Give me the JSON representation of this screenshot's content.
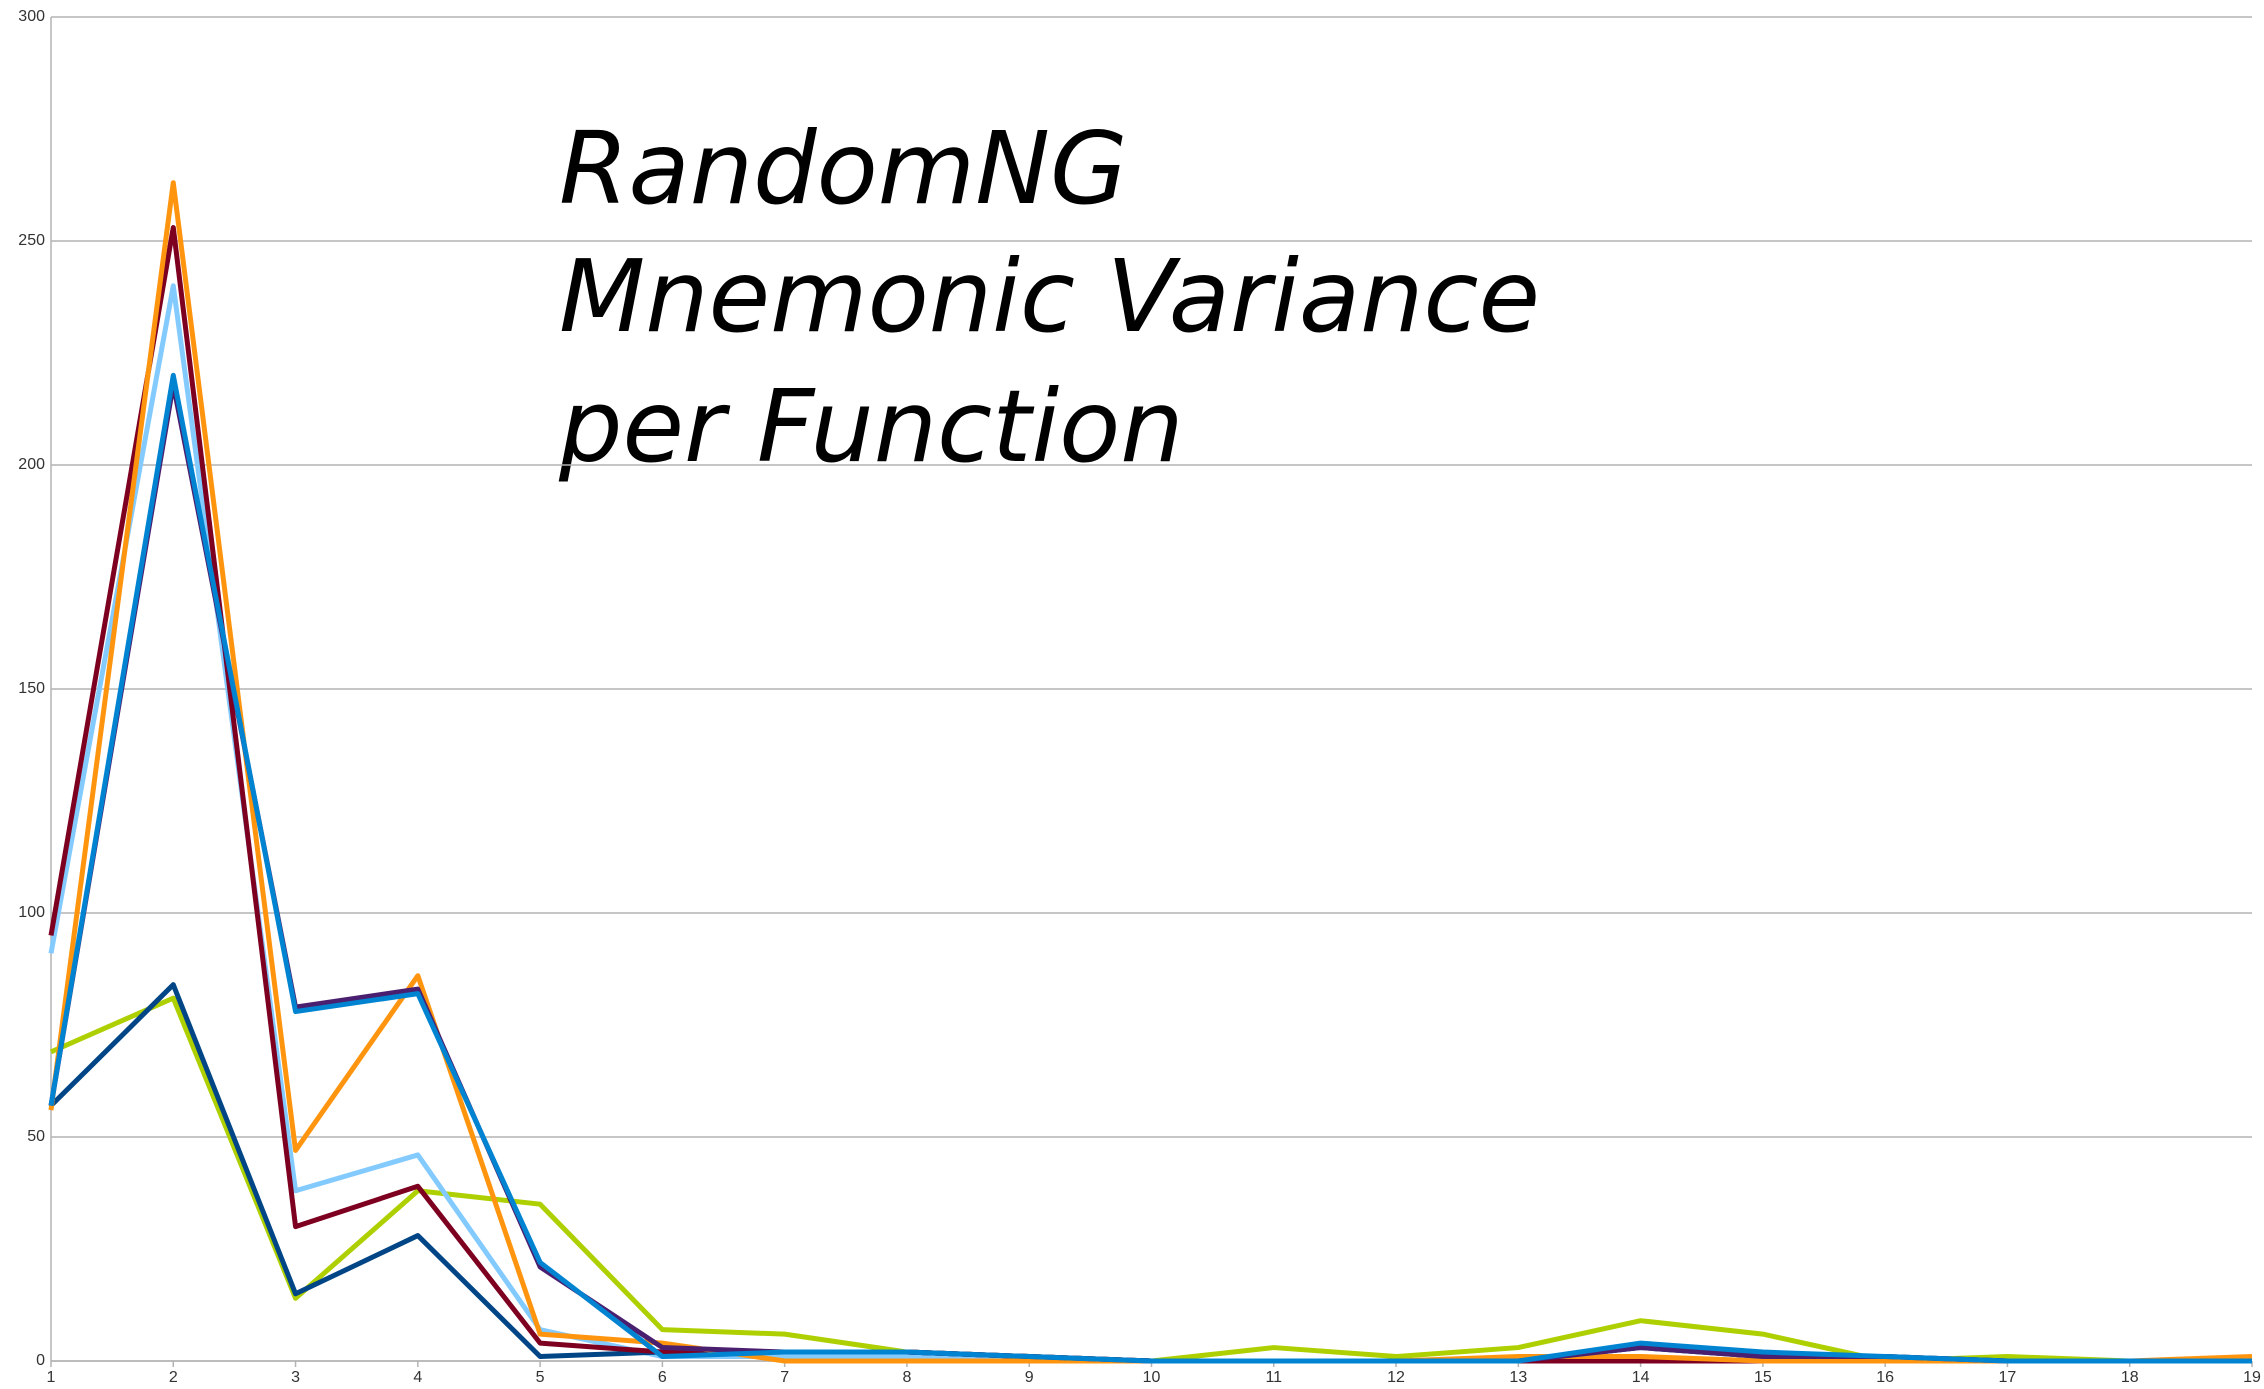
{
  "chart_data": {
    "type": "line",
    "title_lines": [
      "RandomNG",
      "Mnemonic Variance",
      "per Function"
    ],
    "x": [
      1,
      2,
      3,
      4,
      5,
      6,
      7,
      8,
      9,
      10,
      11,
      12,
      13,
      14,
      15,
      16,
      17,
      18,
      19
    ],
    "xlim": [
      1,
      19
    ],
    "xticks": [
      1,
      2,
      3,
      4,
      5,
      6,
      7,
      8,
      9,
      10,
      11,
      12,
      13,
      14,
      15,
      16,
      17,
      18,
      19
    ],
    "ylim": [
      0,
      300
    ],
    "yticks": [
      0,
      50,
      100,
      150,
      200,
      250,
      300
    ],
    "grid": true,
    "series": [
      {
        "color": "#aecf00",
        "values": [
          69,
          81,
          14,
          38,
          35,
          7,
          6,
          2,
          1,
          0,
          3,
          1,
          3,
          9,
          6,
          0,
          1,
          0,
          0
        ]
      },
      {
        "color": "#83caff",
        "values": [
          91,
          240,
          38,
          46,
          7,
          1,
          1,
          1,
          0,
          0,
          0,
          0,
          0,
          3,
          1,
          0,
          0,
          0,
          0
        ]
      },
      {
        "color": "#004586",
        "values": [
          57,
          84,
          15,
          28,
          1,
          2,
          2,
          2,
          1,
          0,
          0,
          0,
          0,
          3,
          1,
          1,
          0,
          0,
          0
        ]
      },
      {
        "color": "#7e0021",
        "values": [
          95,
          253,
          30,
          39,
          4,
          2,
          2,
          2,
          1,
          0,
          0,
          0,
          0,
          0,
          0,
          0,
          0,
          0,
          0
        ]
      },
      {
        "color": "#ff950e",
        "values": [
          56,
          263,
          47,
          86,
          6,
          4,
          0,
          0,
          0,
          0,
          0,
          0,
          1,
          1,
          0,
          0,
          0,
          0,
          1
        ]
      },
      {
        "color": "#4b1f6f",
        "values": [
          57,
          218,
          79,
          83,
          21,
          3,
          2,
          2,
          1,
          0,
          0,
          0,
          0,
          3,
          1,
          1,
          0,
          0,
          0
        ]
      },
      {
        "color": "#0084d1",
        "values": [
          57,
          220,
          78,
          82,
          22,
          1,
          2,
          2,
          1,
          0,
          0,
          0,
          0,
          4,
          2,
          1,
          0,
          0,
          0
        ]
      }
    ]
  }
}
